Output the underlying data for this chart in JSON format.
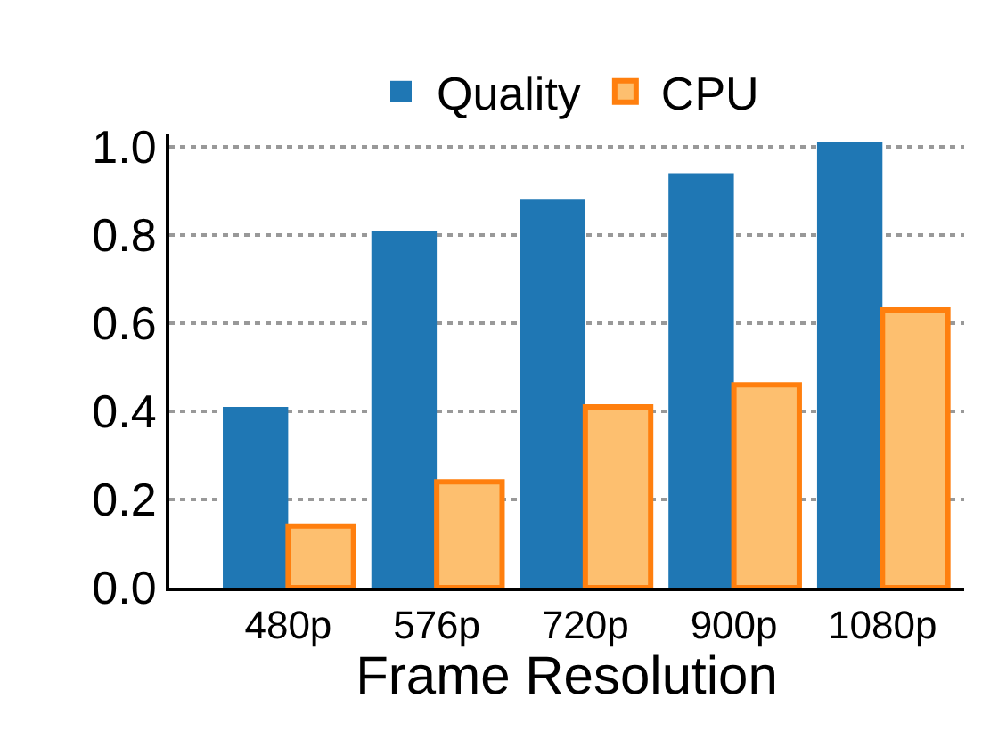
{
  "chart_data": {
    "type": "bar",
    "xlabel": "Frame Resolution",
    "categories": [
      "480p",
      "576p",
      "720p",
      "900p",
      "1080p"
    ],
    "series": [
      {
        "name": "Quality",
        "color": "#1f77b4",
        "values": [
          0.41,
          0.81,
          0.88,
          0.94,
          1.01
        ]
      },
      {
        "name": "CPU",
        "color": "#fdbf6f",
        "values": [
          0.14,
          0.24,
          0.41,
          0.46,
          0.63
        ]
      }
    ],
    "ylim": [
      0,
      1.03
    ],
    "yticks": [
      {
        "value": 0,
        "label": "0.0"
      },
      0.2,
      0.4,
      0.6,
      0.8,
      {
        "value": 1,
        "label": "1.0"
      }
    ],
    "grid": "y",
    "legend": "top"
  }
}
